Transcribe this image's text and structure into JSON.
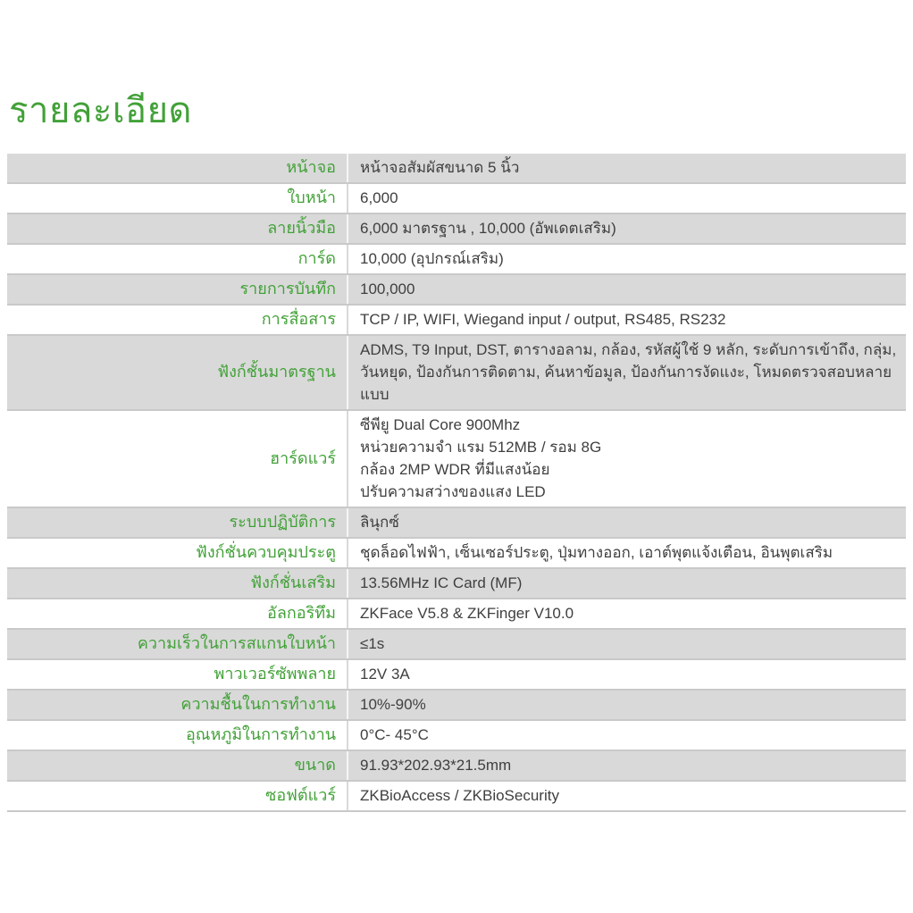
{
  "page_title": "รายละเอียด",
  "colors": {
    "accent_green": "#42a138",
    "row_alt_bg": "#d9d9d9",
    "row_border": "#c9c9c9",
    "value_text": "#3f3f3f"
  },
  "table": {
    "rows": [
      {
        "label": "หน้าจอ",
        "value": [
          "หน้าจอสัมผัสขนาด 5 นิ้ว"
        ]
      },
      {
        "label": "ใบหน้า",
        "value": [
          "6,000"
        ]
      },
      {
        "label": "ลายนิ้วมือ",
        "value": [
          "6,000 มาตรฐาน , 10,000 (อัพเดตเสริม)"
        ]
      },
      {
        "label": "การ์ด",
        "value": [
          "10,000 (อุปกรณ์เสริม)"
        ]
      },
      {
        "label": "รายการบันทึก",
        "value": [
          "100,000"
        ]
      },
      {
        "label": "การสื่อสาร",
        "value": [
          "TCP / IP, WIFI, Wiegand input / output, RS485, RS232"
        ]
      },
      {
        "label": "ฟังก์ชั้นมาตรฐาน",
        "value": [
          "ADMS, T9 Input, DST, ตารางอลาม, กล้อง, รหัสผู้ใช้ 9 หลัก, ระดับการเข้าถึง, กลุ่ม,",
          "วันหยุด, ป้องกันการติดตาม, ค้นหาข้อมูล, ป้องกันการงัดแงะ, โหมดตรวจสอบหลายแบบ"
        ]
      },
      {
        "label": "ฮาร์ดแวร์",
        "value": [
          "ซีพียู Dual Core 900Mhz",
          "หน่วยความจำ แรม 512MB  / รอม 8G",
          "กล้อง 2MP WDR ที่มีแสงน้อย",
          "ปรับความสว่างของแสง LED"
        ]
      },
      {
        "label": "ระบบปฏิบัติการ",
        "value": [
          "ลินุกซ์"
        ]
      },
      {
        "label": "ฟังก์ชั่นควบคุมประตู",
        "value": [
          "ชุดล็อดไฟฟ้า, เซ็นเซอร์ประตู, ปุ่มทางออก, เอาต์พุตแจ้งเตือน, อินพุตเสริม"
        ]
      },
      {
        "label": "ฟังก์ชั่นเสริม",
        "value": [
          "13.56MHz IC Card (MF)"
        ]
      },
      {
        "label": "อัลกอริทึม",
        "value": [
          "ZKFace V5.8 & ZKFinger V10.0"
        ]
      },
      {
        "label": "ความเร็วในการสแกนใบหน้า",
        "value": [
          "≤1s"
        ]
      },
      {
        "label": "พาวเวอร์ซัพพลาย",
        "value": [
          "12V 3A"
        ]
      },
      {
        "label": "ความชื้นในการทำงาน",
        "value": [
          "10%-90%"
        ]
      },
      {
        "label": "อุณหภูมิในการทำงาน",
        "value": [
          "0°C- 45°C"
        ]
      },
      {
        "label": "ขนาด",
        "value": [
          "91.93*202.93*21.5mm"
        ]
      },
      {
        "label": "ซอฟต์แวร์",
        "value": [
          "ZKBioAccess / ZKBioSecurity"
        ]
      }
    ]
  }
}
